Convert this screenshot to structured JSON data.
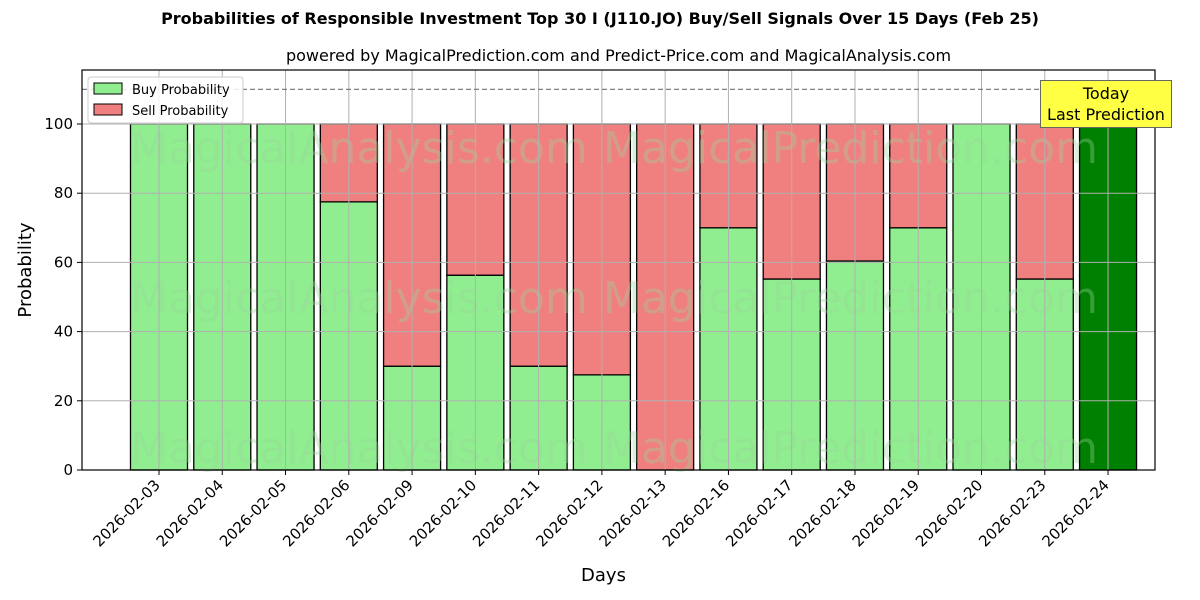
{
  "chart_data": {
    "type": "bar",
    "stacked": true,
    "title": "Probabilities of Responsible Investment Top 30 I (J110.JO) Buy/Sell Signals Over 15 Days (Feb 25)",
    "subtitle": "powered by MagicalPrediction.com and Predict-Price.com and MagicalAnalysis.com",
    "xlabel": "Days",
    "ylabel": "Probability",
    "ylim": [
      0,
      115
    ],
    "yticks": [
      0,
      20,
      40,
      60,
      80,
      100
    ],
    "grid": true,
    "reference_line": {
      "y": 110,
      "style": "dashed",
      "color": "#808080"
    },
    "categories": [
      "2026-02-03",
      "2026-02-04",
      "2026-02-05",
      "2026-02-06",
      "2026-02-09",
      "2026-02-10",
      "2026-02-11",
      "2026-02-12",
      "2026-02-13",
      "2026-02-16",
      "2026-02-17",
      "2026-02-18",
      "2026-02-19",
      "2026-02-20",
      "2026-02-23",
      "2026-02-24"
    ],
    "series": [
      {
        "name": "Buy Probability",
        "color": "#90ee90",
        "values": [
          100,
          100,
          100,
          77.5,
          30,
          56.3,
          30,
          27.5,
          0,
          70,
          55.2,
          60.4,
          70,
          100,
          55.2,
          100
        ]
      },
      {
        "name": "Sell Probability",
        "color": "#f08080",
        "values": [
          0,
          0,
          0,
          22.5,
          70,
          43.7,
          70,
          72.5,
          100,
          30,
          44.8,
          39.6,
          30,
          0,
          44.8,
          0
        ]
      }
    ],
    "highlight": {
      "category": "2026-02-24",
      "color": "#008000",
      "annotation": "Today\nLast Prediction"
    },
    "legend": {
      "position": "upper left",
      "entries": [
        "Buy Probability",
        "Sell Probability"
      ]
    },
    "watermarks": [
      "MagicalAnalysis.com",
      "MagicalPrediction.com"
    ]
  },
  "header": {
    "title": "Probabilities of Responsible Investment Top 30 I (J110.JO) Buy/Sell Signals Over 15 Days (Feb 25)",
    "subtitle": "powered by MagicalPrediction.com and Predict-Price.com and MagicalAnalysis.com"
  },
  "annotation": {
    "line1": "Today",
    "line2": "Last Prediction"
  },
  "legend": {
    "buy": "Buy Probability",
    "sell": "Sell Probability"
  },
  "axes": {
    "x_label": "Days",
    "y_label": "Probability"
  }
}
